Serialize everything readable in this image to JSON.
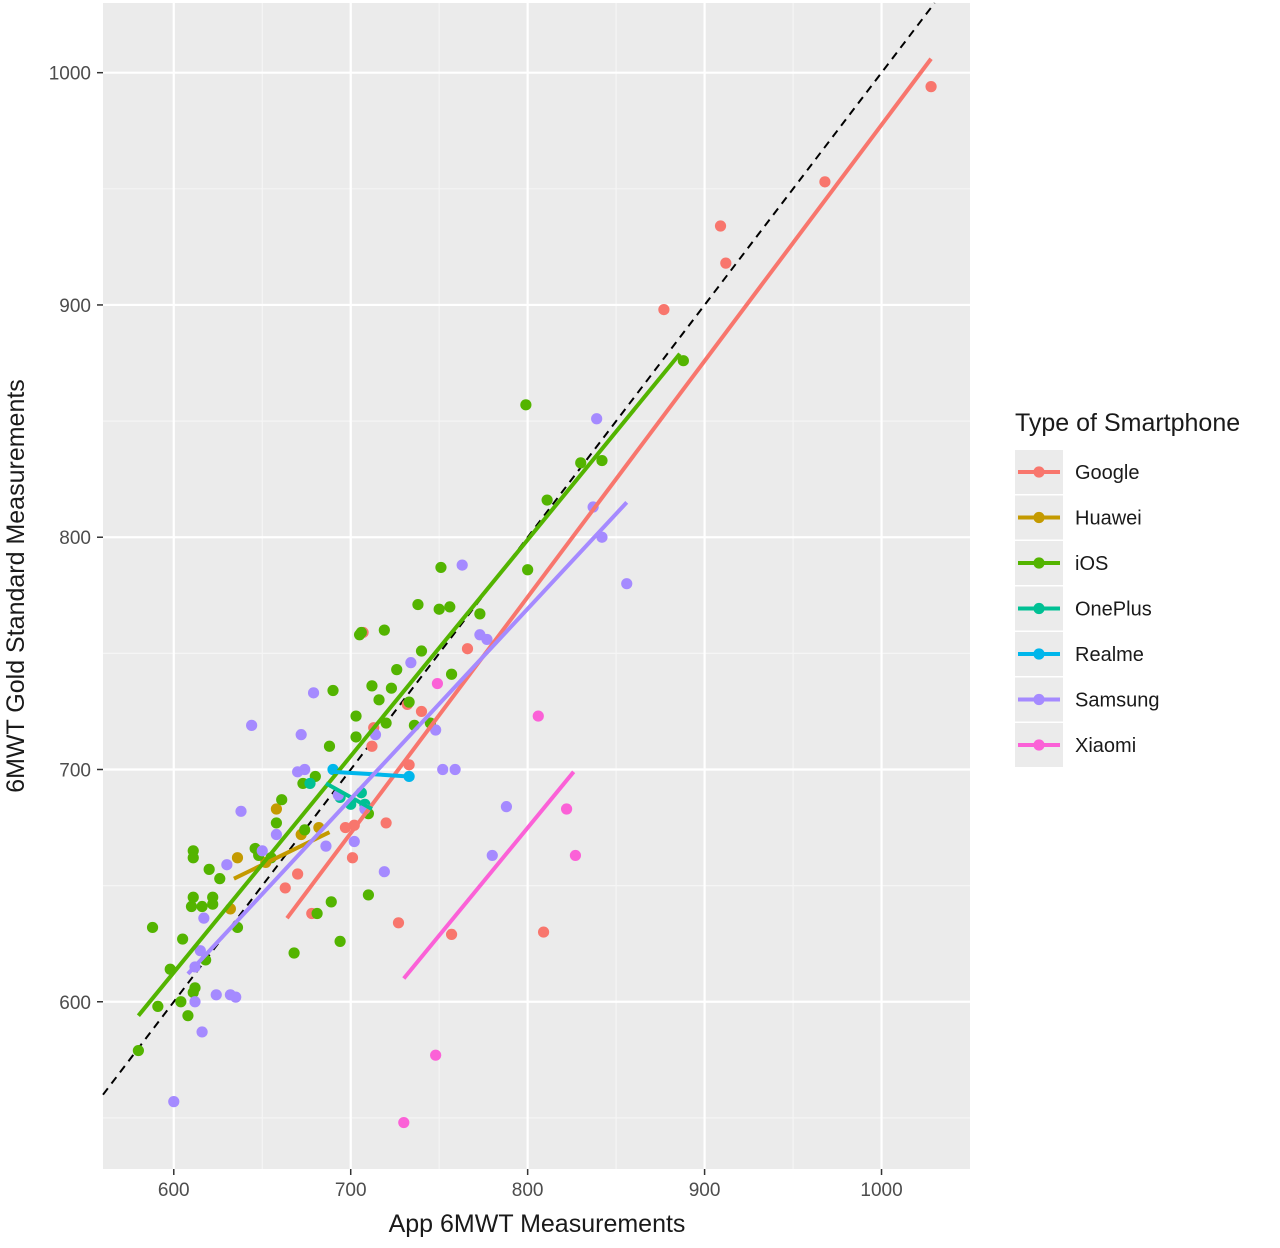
{
  "chart_data": {
    "type": "scatter",
    "title": "",
    "xlabel": "App 6MWT Measurements",
    "ylabel": "6MWT Gold Standard Measurements",
    "xlim": [
      560,
      1050
    ],
    "ylim": [
      528,
      1030
    ],
    "x_ticks": [
      600,
      700,
      800,
      900,
      1000
    ],
    "y_ticks": [
      600,
      700,
      800,
      900,
      1000
    ],
    "grid": true,
    "reference_line": {
      "type": "identity",
      "style": "dashed",
      "color": "#000000"
    },
    "legend": {
      "title": "Type of Smartphone",
      "position": "right"
    },
    "series": [
      {
        "name": "Google",
        "color": "#F8766D",
        "points": [
          [
            1028,
            994
          ],
          [
            968,
            953
          ],
          [
            912,
            918
          ],
          [
            909,
            934
          ],
          [
            877,
            898
          ],
          [
            766,
            752
          ],
          [
            720,
            677
          ],
          [
            707,
            759
          ],
          [
            702,
            676
          ],
          [
            712,
            710
          ],
          [
            701,
            662
          ],
          [
            727,
            634
          ],
          [
            732,
            728
          ],
          [
            713,
            718
          ],
          [
            733,
            702
          ],
          [
            678,
            638
          ],
          [
            663,
            649
          ],
          [
            670,
            655
          ],
          [
            757,
            629
          ],
          [
            809,
            630
          ],
          [
            697,
            675
          ],
          [
            740,
            725
          ]
        ],
        "fit": [
          [
            664,
            636
          ],
          [
            1028,
            1006
          ]
        ]
      },
      {
        "name": "Huawei",
        "color": "#C49A00",
        "points": [
          [
            658,
            683
          ],
          [
            648,
            664
          ],
          [
            652,
            660
          ],
          [
            636,
            662
          ],
          [
            632,
            640
          ],
          [
            672,
            672
          ],
          [
            682,
            675
          ]
        ],
        "fit": [
          [
            634,
            653
          ],
          [
            688,
            673
          ]
        ]
      },
      {
        "name": "iOS",
        "color": "#53B400",
        "points": [
          [
            580,
            579
          ],
          [
            588,
            632
          ],
          [
            591,
            598
          ],
          [
            598,
            614
          ],
          [
            605,
            627
          ],
          [
            608,
            594
          ],
          [
            610,
            641
          ],
          [
            611,
            665
          ],
          [
            611,
            662
          ],
          [
            611,
            604
          ],
          [
            611,
            645
          ],
          [
            616,
            641
          ],
          [
            618,
            618
          ],
          [
            620,
            657
          ],
          [
            622,
            645
          ],
          [
            626,
            653
          ],
          [
            622,
            642
          ],
          [
            648,
            663
          ],
          [
            655,
            662
          ],
          [
            646,
            666
          ],
          [
            658,
            677
          ],
          [
            668,
            621
          ],
          [
            674,
            674
          ],
          [
            673,
            694
          ],
          [
            680,
            697
          ],
          [
            681,
            638
          ],
          [
            689,
            643
          ],
          [
            688,
            710
          ],
          [
            694,
            626
          ],
          [
            690,
            734
          ],
          [
            703,
            714
          ],
          [
            703,
            723
          ],
          [
            705,
            758
          ],
          [
            706,
            759
          ],
          [
            710,
            646
          ],
          [
            710,
            681
          ],
          [
            712,
            736
          ],
          [
            716,
            730
          ],
          [
            719,
            760
          ],
          [
            720,
            720
          ],
          [
            723,
            735
          ],
          [
            726,
            743
          ],
          [
            733,
            729
          ],
          [
            736,
            719
          ],
          [
            738,
            771
          ],
          [
            740,
            751
          ],
          [
            745,
            720
          ],
          [
            750,
            769
          ],
          [
            751,
            787
          ],
          [
            756,
            770
          ],
          [
            757,
            741
          ],
          [
            773,
            767
          ],
          [
            799,
            857
          ],
          [
            800,
            786
          ],
          [
            811,
            816
          ],
          [
            830,
            832
          ],
          [
            842,
            833
          ],
          [
            888,
            876
          ],
          [
            636,
            632
          ],
          [
            661,
            687
          ],
          [
            604,
            600
          ],
          [
            612,
            606
          ]
        ],
        "fit": [
          [
            580,
            594
          ],
          [
            886,
            879
          ]
        ]
      },
      {
        "name": "OnePlus",
        "color": "#00C094",
        "points": [
          [
            700,
            685
          ],
          [
            706,
            690
          ],
          [
            708,
            685
          ],
          [
            677,
            694
          ],
          [
            694,
            688
          ]
        ],
        "fit": [
          [
            686,
            694
          ],
          [
            712,
            683
          ]
        ]
      },
      {
        "name": "Realme",
        "color": "#00B6EB",
        "points": [
          [
            690,
            700
          ],
          [
            733,
            697
          ]
        ],
        "fit": [
          [
            690,
            699
          ],
          [
            733,
            697
          ]
        ]
      },
      {
        "name": "Samsung",
        "color": "#A58AFF",
        "points": [
          [
            600,
            557
          ],
          [
            612,
            615
          ],
          [
            612,
            600
          ],
          [
            616,
            587
          ],
          [
            617,
            636
          ],
          [
            624,
            603
          ],
          [
            630,
            659
          ],
          [
            632,
            603
          ],
          [
            635,
            602
          ],
          [
            638,
            682
          ],
          [
            644,
            719
          ],
          [
            658,
            672
          ],
          [
            670,
            699
          ],
          [
            672,
            715
          ],
          [
            674,
            700
          ],
          [
            679,
            733
          ],
          [
            686,
            667
          ],
          [
            693,
            689
          ],
          [
            702,
            669
          ],
          [
            708,
            683
          ],
          [
            714,
            715
          ],
          [
            719,
            656
          ],
          [
            734,
            746
          ],
          [
            748,
            717
          ],
          [
            752,
            700
          ],
          [
            759,
            700
          ],
          [
            763,
            788
          ],
          [
            773,
            758
          ],
          [
            777,
            756
          ],
          [
            780,
            663
          ],
          [
            788,
            684
          ],
          [
            837,
            813
          ],
          [
            839,
            851
          ],
          [
            842,
            800
          ],
          [
            856,
            780
          ],
          [
            650,
            665
          ],
          [
            615,
            622
          ]
        ],
        "fit": [
          [
            608,
            612
          ],
          [
            856,
            815
          ]
        ]
      },
      {
        "name": "Xiaomi",
        "color": "#FB61D7",
        "points": [
          [
            806,
            723
          ],
          [
            822,
            683
          ],
          [
            827,
            663
          ],
          [
            749,
            737
          ],
          [
            748,
            577
          ],
          [
            730,
            548
          ]
        ],
        "fit": [
          [
            730,
            610
          ],
          [
            826,
            699
          ]
        ]
      }
    ]
  }
}
